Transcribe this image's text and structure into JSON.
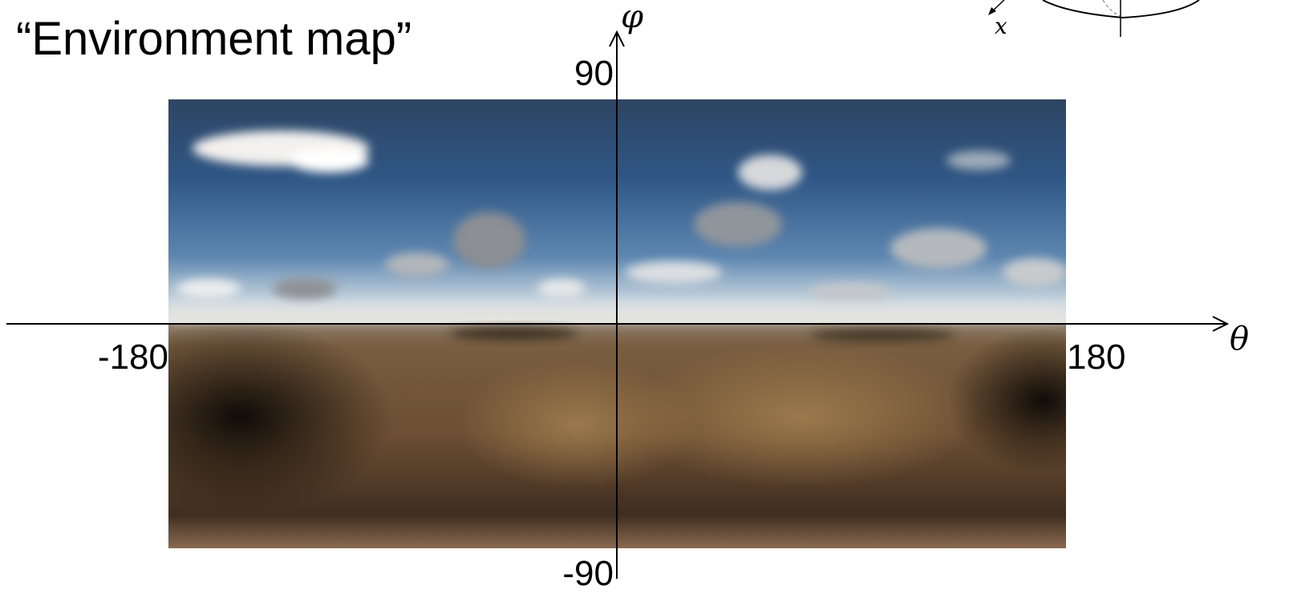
{
  "title": "“Environment map”",
  "axes": {
    "vertical": {
      "label": "φ",
      "top": "90",
      "bottom": "-90"
    },
    "horizontal": {
      "label": "θ",
      "left": "-180",
      "right": "180"
    }
  },
  "inset": {
    "axis_label": "x"
  }
}
